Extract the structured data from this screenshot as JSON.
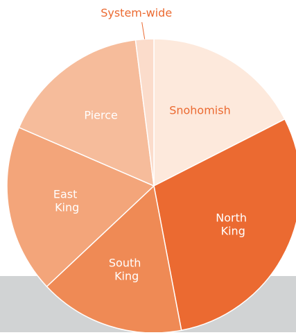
{
  "chart_data": {
    "type": "pie",
    "categories": [
      "Snohomish",
      "North King",
      "South King",
      "East King",
      "Pierce",
      "System-wide"
    ],
    "values": [
      17.5,
      29.5,
      16,
      18.5,
      16.5,
      2
    ],
    "colors": [
      "#fde9dc",
      "#eb6a31",
      "#ef8a55",
      "#f3a57a",
      "#f6bc9b",
      "#fbdccb"
    ]
  }
}
